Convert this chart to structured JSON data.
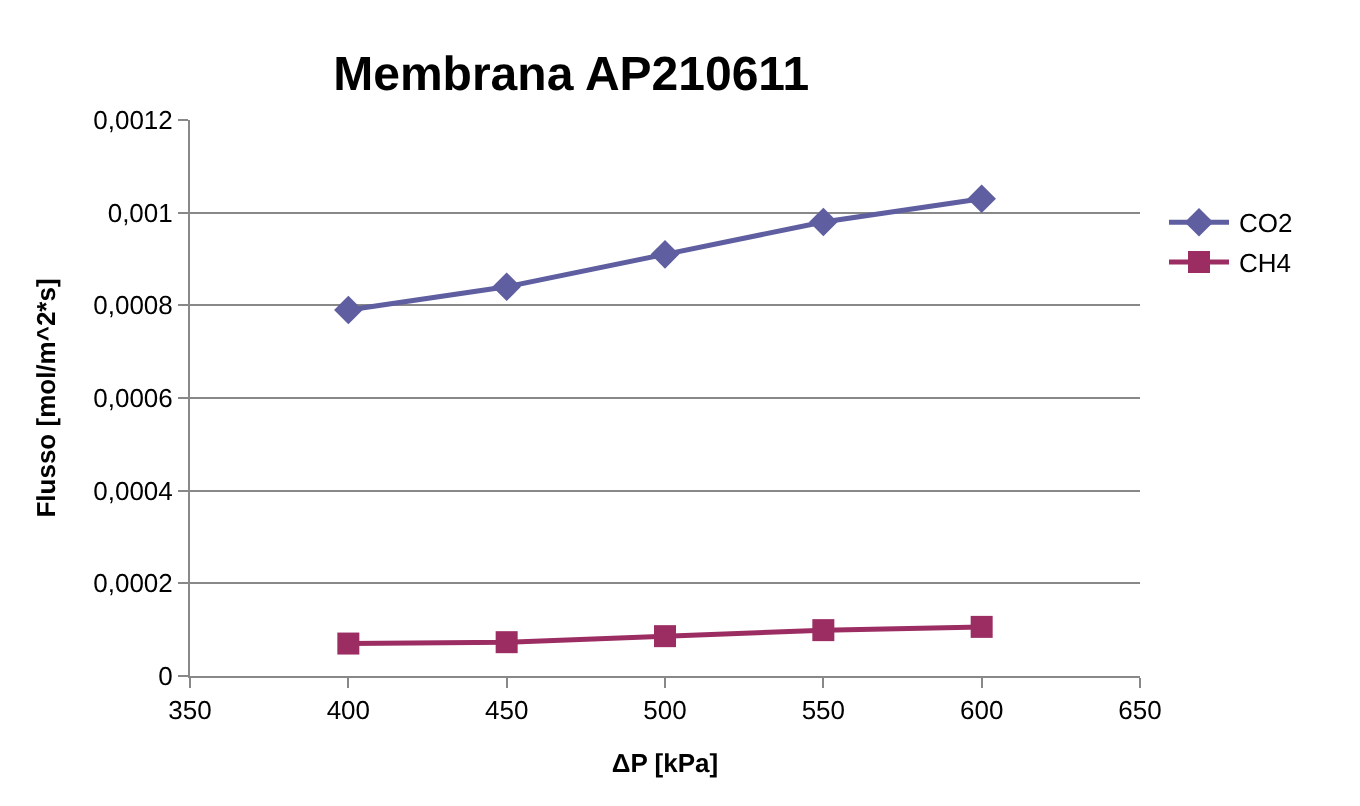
{
  "chart_data": {
    "type": "line",
    "title": "Membrana AP210611",
    "xlabel": "ΔP [kPa]",
    "ylabel": "Flusso [mol/m^2*s]",
    "x": [
      400,
      450,
      500,
      550,
      600
    ],
    "series": [
      {
        "name": "CO2",
        "color": "#5e5ea0",
        "marker": "diamond",
        "values": [
          0.00079,
          0.00084,
          0.00091,
          0.00098,
          0.00103
        ]
      },
      {
        "name": "CH4",
        "color": "#9b2d62",
        "marker": "square",
        "values": [
          7e-05,
          7.3e-05,
          8.6e-05,
          9.9e-05,
          0.000106
        ]
      }
    ],
    "xlim": [
      350,
      650
    ],
    "xticks": [
      350,
      400,
      450,
      500,
      550,
      600,
      650
    ],
    "ylim": [
      0,
      0.0012
    ],
    "yticks": [
      0,
      {
        "value": 0.0002,
        "label": "0,0002"
      },
      {
        "value": 0.0004,
        "label": "0,0004"
      },
      {
        "value": 0.0006,
        "label": "0,0006"
      },
      {
        "value": 0.0008,
        "label": "0,0008"
      },
      {
        "value": 0.001,
        "label": "0,001"
      },
      {
        "value": 0.0012,
        "label": "0,0012"
      }
    ],
    "grid": "y",
    "legend": "right",
    "line_style": "solid"
  }
}
